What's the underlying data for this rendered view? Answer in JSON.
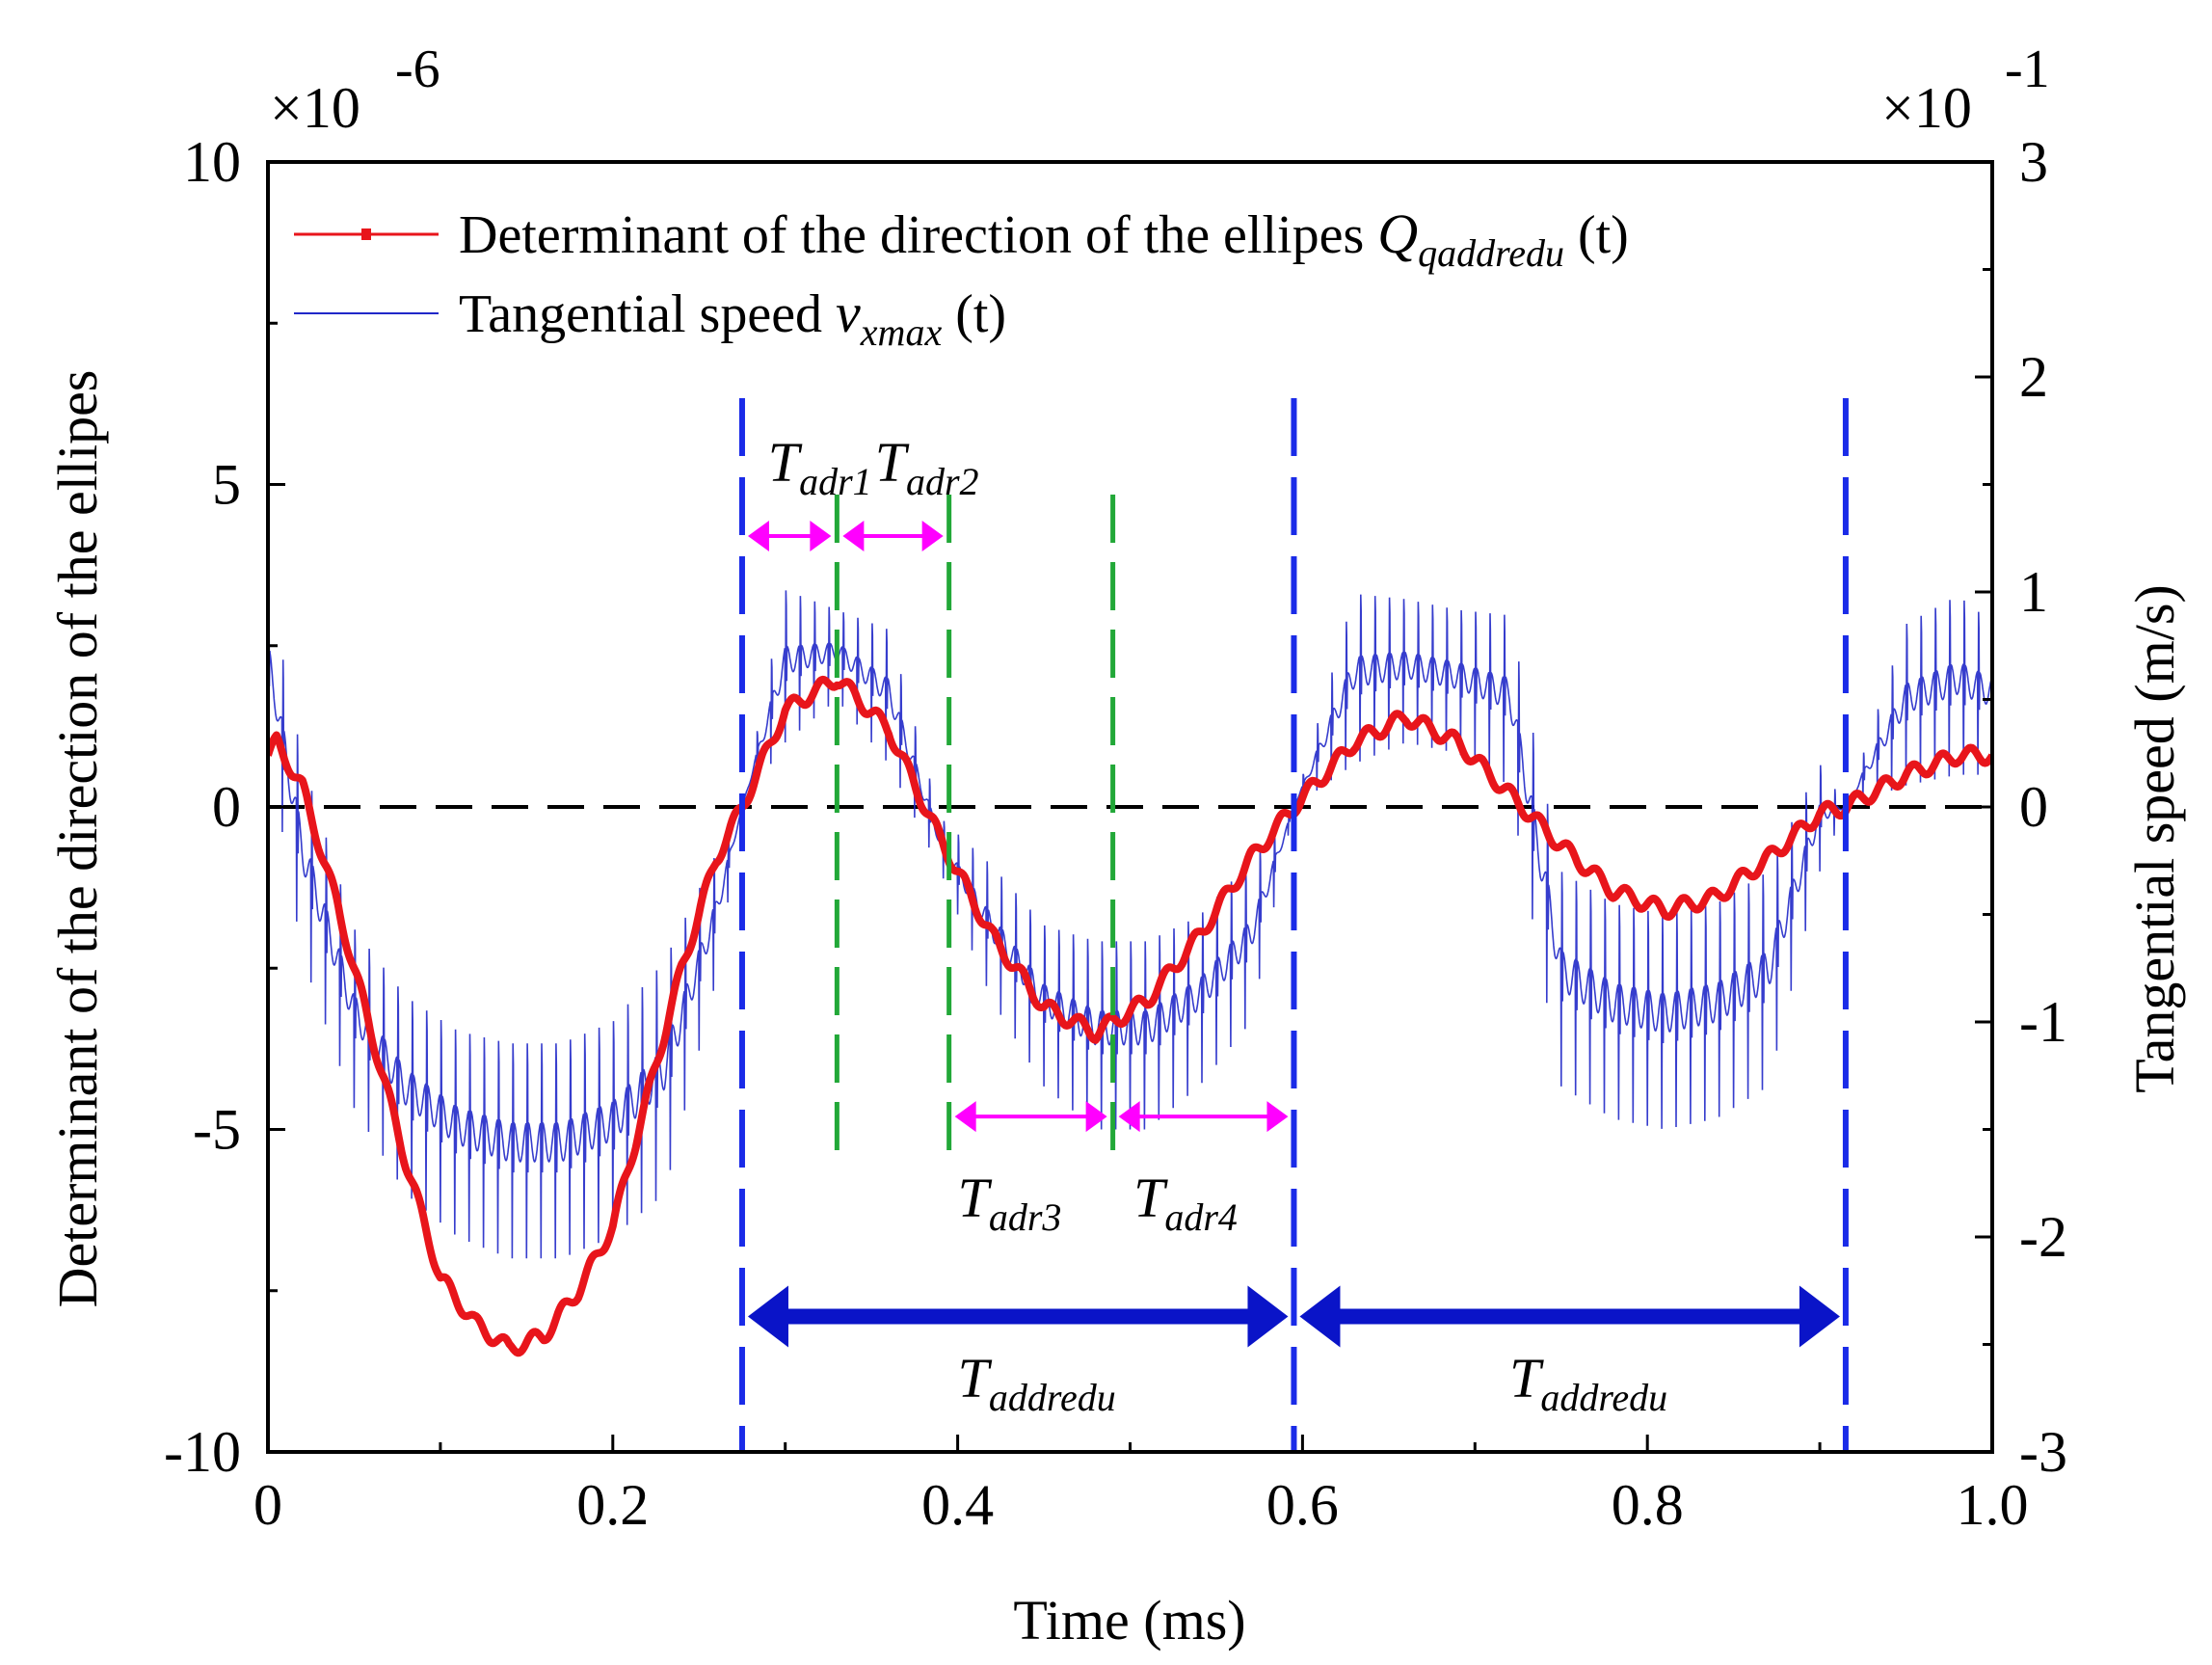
{
  "chart_data": {
    "type": "line",
    "xlabel": "Time (ms)",
    "ylabel": "Determinant of the direction of the ellipes",
    "y2label": "Tangential speed (m/s)",
    "xlim": [
      0,
      1.0
    ],
    "ylim": [
      -10,
      10
    ],
    "y2lim": [
      -3,
      3
    ],
    "x_ticks": [
      "0",
      "0.2",
      "0.4",
      "0.6",
      "0.8",
      "1.0"
    ],
    "y_ticks": [
      "10",
      "5",
      "0",
      "-5",
      "-10"
    ],
    "y2_ticks": [
      "3",
      "2",
      "1",
      "0",
      "-1",
      "-2",
      "-3"
    ],
    "y_multiplier": "×10",
    "y_multiplier_exp": "-6",
    "y2_multiplier": "×10",
    "y2_multiplier_exp": "-1",
    "legend_placement": "top-left",
    "grid": false,
    "series": [
      {
        "name": "Determinant of the direction of the ellipes",
        "symbol": "Q",
        "symbol_sub": "qaddredu",
        "symbol_suffix": " (t)",
        "color": "#e8151b",
        "axis": "left",
        "x": [
          0,
          0.005,
          0.02,
          0.04,
          0.06,
          0.08,
          0.1,
          0.12,
          0.14,
          0.16,
          0.18,
          0.2,
          0.22,
          0.24,
          0.26,
          0.275,
          0.3,
          0.33,
          0.36,
          0.39,
          0.42,
          0.45,
          0.48,
          0.51,
          0.54,
          0.57,
          0.595,
          0.63,
          0.66,
          0.69,
          0.72,
          0.75,
          0.78,
          0.81,
          0.84,
          0.87,
          0.9,
          0.915,
          0.95,
          0.98,
          1.0
        ],
        "y": [
          0.8,
          1.0,
          0.3,
          -1.5,
          -3.5,
          -5.5,
          -7.3,
          -8.0,
          -8.4,
          -8.2,
          -7.5,
          -6.5,
          -4.5,
          -2.5,
          -0.8,
          0.0,
          1.5,
          2.0,
          1.2,
          -0.5,
          -2.0,
          -3.1,
          -3.5,
          -3.0,
          -2.0,
          -0.8,
          0.0,
          1.0,
          1.4,
          1.0,
          0.2,
          -0.6,
          -1.3,
          -1.6,
          -1.4,
          -0.8,
          -0.1,
          0.0,
          0.5,
          0.8,
          0.8
        ]
      },
      {
        "name": "Tangential speed",
        "symbol": "v",
        "symbol_sub": "xmax",
        "symbol_suffix": " (t)",
        "color": "#2028c8",
        "axis": "right",
        "envelope_x": [
          0,
          0.02,
          0.05,
          0.08,
          0.11,
          0.14,
          0.17,
          0.2,
          0.23,
          0.26,
          0.275,
          0.3,
          0.33,
          0.36,
          0.39,
          0.42,
          0.45,
          0.48,
          0.51,
          0.54,
          0.57,
          0.595,
          0.63,
          0.66,
          0.69,
          0.72,
          0.75,
          0.78,
          0.81,
          0.84,
          0.87,
          0.9,
          0.915,
          0.95,
          0.98,
          1.0
        ],
        "envelope_min": [
          0.3,
          -0.7,
          -1.4,
          -1.8,
          -2.0,
          -2.1,
          -2.1,
          -2.0,
          -1.8,
          -0.8,
          0.0,
          0.3,
          0.5,
          0.2,
          -0.3,
          -0.9,
          -1.3,
          -1.5,
          -1.5,
          -1.3,
          -1.0,
          0.0,
          0.2,
          0.3,
          0.25,
          0.1,
          -1.3,
          -1.45,
          -1.5,
          -1.45,
          -1.3,
          -0.3,
          0.0,
          0.1,
          0.15,
          0.15
        ],
        "envelope_max": [
          1.2,
          0.4,
          -0.4,
          -0.7,
          -0.85,
          -0.9,
          -0.9,
          -0.8,
          -0.5,
          -0.1,
          0.0,
          1.15,
          1.0,
          0.95,
          0.0,
          -0.15,
          -0.4,
          -0.45,
          -0.45,
          -0.35,
          -0.1,
          0.0,
          1.15,
          1.1,
          1.05,
          1.05,
          -0.1,
          -0.25,
          -0.3,
          -0.25,
          -0.1,
          0.3,
          0.0,
          1.0,
          1.15,
          1.0
        ]
      }
    ],
    "zero_line": {
      "y": 0,
      "style": "dashed",
      "color": "#000000"
    },
    "markers": {
      "blue_dashed_x": [
        0.275,
        0.595,
        0.915
      ],
      "green_dashed_x": [
        0.33,
        0.395,
        0.49
      ]
    },
    "annotations": [
      {
        "base": "T",
        "sub": "adr1",
        "arrow_x": [
          0.275,
          0.33
        ],
        "arrow_y": 4.2,
        "color": "#ff00ff"
      },
      {
        "base": "T",
        "sub": "adr2",
        "arrow_x": [
          0.33,
          0.395
        ],
        "arrow_y": 4.2,
        "color": "#ff00ff"
      },
      {
        "base": "T",
        "sub": "adr3",
        "arrow_x": [
          0.395,
          0.49
        ],
        "arrow_y": -4.8,
        "color": "#ff00ff"
      },
      {
        "base": "T",
        "sub": "adr4",
        "arrow_x": [
          0.49,
          0.595
        ],
        "arrow_y": -4.8,
        "color": "#ff00ff"
      },
      {
        "base": "T",
        "sub": "addredu",
        "arrow_x": [
          0.275,
          0.595
        ],
        "arrow_y": -7.9,
        "color": "#0a14c8"
      },
      {
        "base": "T",
        "sub": "addredu",
        "arrow_x": [
          0.595,
          0.915
        ],
        "arrow_y": -7.9,
        "color": "#0a14c8"
      }
    ]
  }
}
